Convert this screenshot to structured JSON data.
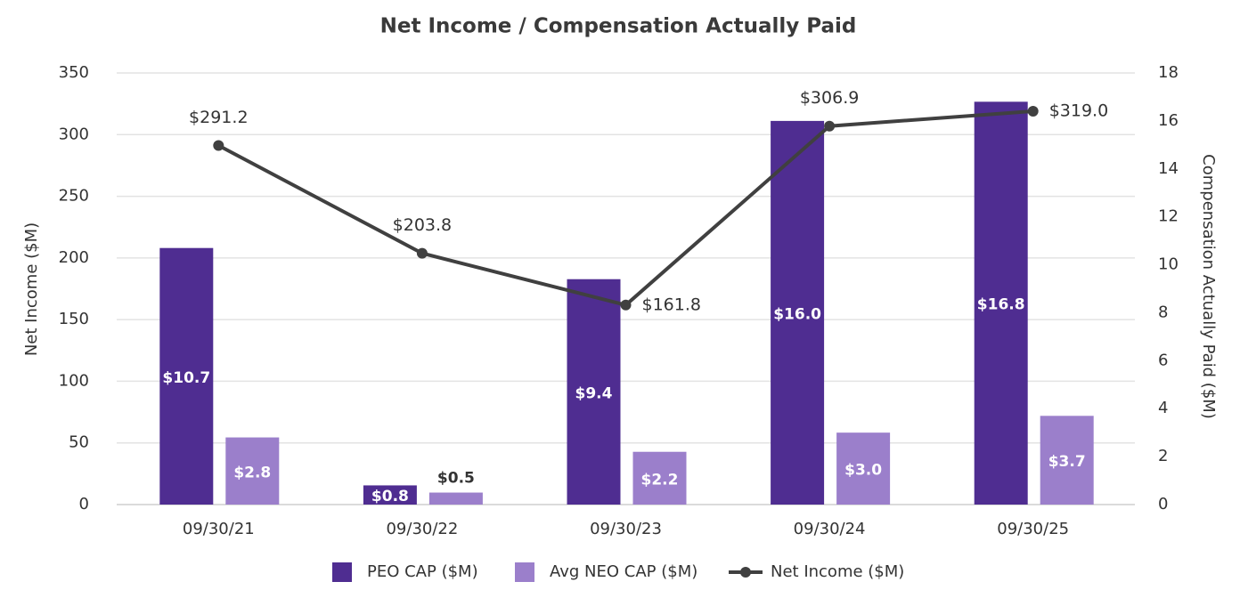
{
  "chart_data": {
    "type": "bar_line",
    "title": "Net Income / Compensation Actually Paid",
    "y_label": "Net Income ($M)",
    "y2_label": "Compensation Actually Paid ($M)",
    "categories": [
      "09/30/21",
      "09/30/22",
      "09/30/23",
      "09/30/24",
      "09/30/25"
    ],
    "series": [
      {
        "name": "PEO CAP ($M)",
        "type": "bar",
        "axis": "y2",
        "color": "#4f2d91",
        "values": [
          10.7,
          0.8,
          9.4,
          16.0,
          16.8
        ],
        "value_labels": [
          "$10.7",
          "$0.8",
          "$9.4",
          "$16.0",
          "$16.8"
        ]
      },
      {
        "name": "Avg NEO CAP ($M)",
        "type": "bar",
        "axis": "y2",
        "color": "#9b7fcb",
        "values": [
          2.8,
          0.5,
          2.2,
          3.0,
          3.7
        ],
        "value_labels": [
          "$2.8",
          "$0.5",
          "$2.2",
          "$3.0",
          "$3.7"
        ]
      },
      {
        "name": "Net Income ($M)",
        "type": "line",
        "axis": "y",
        "color": "#404040",
        "values": [
          291.2,
          203.8,
          161.8,
          306.9,
          319.0
        ],
        "value_labels": [
          "$291.2",
          "$203.8",
          "$161.8",
          "$306.9",
          "$319.0"
        ]
      }
    ],
    "ylim": [
      0,
      350
    ],
    "yticks": [
      0,
      50,
      100,
      150,
      200,
      250,
      300,
      350
    ],
    "y2lim": [
      0,
      18
    ],
    "y2ticks": [
      0,
      2,
      4,
      6,
      8,
      10,
      12,
      14,
      16,
      18
    ],
    "grid": true,
    "legend": "bottom"
  }
}
